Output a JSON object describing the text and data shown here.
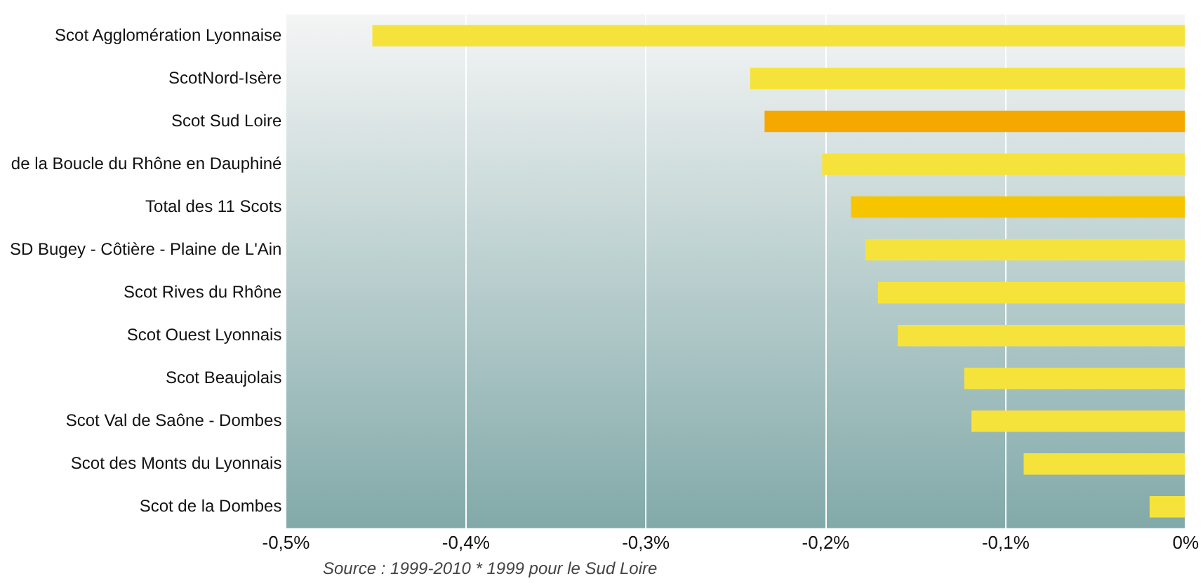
{
  "chart_data": {
    "type": "bar",
    "orientation": "horizontal",
    "categories": [
      "Scot Agglomération Lyonnaise",
      "ScotNord-Isère",
      "Scot Sud Loire",
      "de la Boucle du Rhône en Dauphiné",
      "Total des 11 Scots",
      "SD Bugey - Côtière - Plaine de L'Ain",
      "Scot Rives du Rhône",
      "Scot Ouest Lyonnais",
      "Scot Beaujolais",
      "Scot Val de Saône - Dombes",
      "Scot des Monts du Lyonnais",
      "Scot de la Dombes"
    ],
    "values": [
      -0.452,
      -0.242,
      -0.234,
      -0.202,
      -0.186,
      -0.178,
      -0.171,
      -0.16,
      -0.123,
      -0.119,
      -0.09,
      -0.02
    ],
    "colors": [
      "#f5e33c",
      "#f5e33c",
      "#f5a800",
      "#f5e33c",
      "#f7c500",
      "#f5e33c",
      "#f5e33c",
      "#f5e33c",
      "#f5e33c",
      "#f5e33c",
      "#f5e33c",
      "#f5e33c"
    ],
    "xlim": [
      -0.5,
      0
    ],
    "xticks": [
      {
        "value": -0.5,
        "label": "-0,5%"
      },
      {
        "value": -0.4,
        "label": "-0,4%"
      },
      {
        "value": -0.3,
        "label": "-0,3%"
      },
      {
        "value": -0.2,
        "label": "-0,2%"
      },
      {
        "value": -0.1,
        "label": "-0,1%"
      },
      {
        "value": 0,
        "label": "0%"
      }
    ],
    "grid": "x",
    "legend": false,
    "annotations": [
      "Source : 1999-2010 * 1999 pour le Sud Loire"
    ]
  }
}
